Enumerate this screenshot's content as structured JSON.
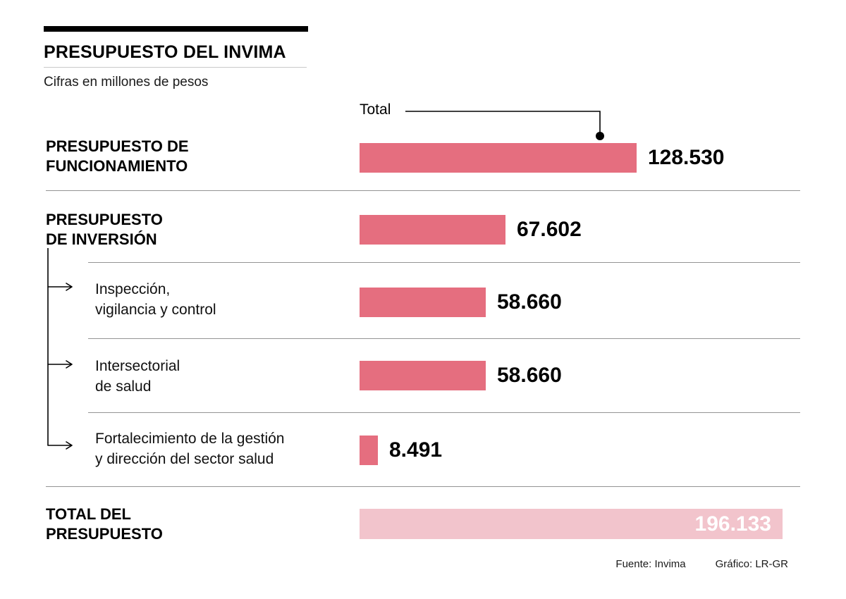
{
  "header": {
    "title": "PRESUPUESTO DEL INVIMA",
    "subtitle": "Cifras en millones de pesos",
    "total_annotation": "Total"
  },
  "footer": {
    "source": "Fuente: Invima",
    "credit": "Gráfico: LR-GR"
  },
  "colors": {
    "bar": "#e56e7f",
    "total_bar": "#f2c4cc"
  },
  "chart_data": {
    "type": "bar",
    "title": "PRESUPUESTO DEL INVIMA",
    "subtitle": "Cifras en millones de pesos",
    "unit": "millones de pesos",
    "orientation": "horizontal",
    "max_value": 196133,
    "annotation": {
      "label": "Total",
      "points_to_row": 0
    },
    "rows": [
      {
        "label": "PRESUPUESTO DE FUNCIONAMIENTO",
        "label_lines": [
          "PRESUPUESTO DE",
          "FUNCIONAMIENTO"
        ],
        "value": 128530,
        "value_label": "128.530",
        "style": "main"
      },
      {
        "label": "PRESUPUESTO DE INVERSIÓN",
        "label_lines": [
          "PRESUPUESTO",
          "DE INVERSIÓN"
        ],
        "value": 67602,
        "value_label": "67.602",
        "style": "main"
      },
      {
        "label": "Inspección, vigilancia y control",
        "label_lines": [
          "Inspección,",
          "vigilancia y control"
        ],
        "value": 58660,
        "value_label": "58.660",
        "style": "sub"
      },
      {
        "label": "Intersectorial de salud",
        "label_lines": [
          "Intersectorial",
          "de salud"
        ],
        "value": 58660,
        "value_label": "58.660",
        "style": "sub"
      },
      {
        "label": "Fortalecimiento de la gestión y dirección del sector salud",
        "label_lines": [
          "Fortalecimiento de la gestión",
          "y dirección del sector salud"
        ],
        "value": 8491,
        "value_label": "8.491",
        "style": "sub"
      },
      {
        "label": "TOTAL DEL PRESUPUESTO",
        "label_lines": [
          "TOTAL DEL",
          "PRESUPUESTO"
        ],
        "value": 196133,
        "value_label": "196.133",
        "style": "total"
      }
    ]
  }
}
